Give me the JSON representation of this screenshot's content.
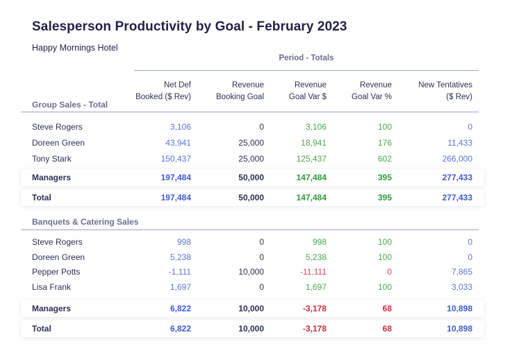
{
  "report": {
    "title": "Salesperson Productivity by Goal - February 2023",
    "subtitle": "Happy Mornings Hotel",
    "period_label": "Period - Totals"
  },
  "columns": [
    {
      "line1": "Net Def",
      "line2": "Booked ($ Rev)"
    },
    {
      "line1": "Revenue",
      "line2": "Booking Goal"
    },
    {
      "line1": "Revenue",
      "line2": "Goal Var $"
    },
    {
      "line1": "Revenue",
      "line2": "Goal Var %"
    },
    {
      "line1": "New Tentatives",
      "line2": "($ Rev)"
    }
  ],
  "sections": [
    {
      "label": "Group Sales - Total",
      "rows": [
        {
          "name": "Steve Rogers",
          "values": [
            "3,106",
            "0",
            "3,106",
            "100",
            "0"
          ]
        },
        {
          "name": "Doreen Green",
          "values": [
            "43,941",
            "25,000",
            "18,941",
            "176",
            "11,433"
          ]
        },
        {
          "name": "Tony Stark",
          "values": [
            "150,437",
            "25,000",
            "125,437",
            "602",
            "266,000"
          ]
        }
      ],
      "managers": {
        "name": "Managers",
        "values": [
          "197,484",
          "50,000",
          "147,484",
          "395",
          "277,433"
        ]
      },
      "total": {
        "name": "Total",
        "values": [
          "197,484",
          "50,000",
          "147,484",
          "395",
          "277,433"
        ]
      }
    },
    {
      "label": "Banquets & Catering Sales",
      "rows": [
        {
          "name": "Steve Rogers",
          "values": [
            "998",
            "0",
            "998",
            "100",
            "0"
          ]
        },
        {
          "name": "Doreen Green",
          "values": [
            "5,238",
            "0",
            "5,238",
            "100",
            "0"
          ]
        },
        {
          "name": "Pepper Potts",
          "values": [
            "-1,111",
            "10,000",
            "-11,111",
            "0",
            "7,865"
          ]
        },
        {
          "name": "Lisa Frank",
          "values": [
            "1,697",
            "0",
            "1,697",
            "100",
            "3,033"
          ]
        }
      ],
      "managers": {
        "name": "Managers",
        "values": [
          "6,822",
          "10,000",
          "-3,178",
          "68",
          "10,898"
        ]
      },
      "total": {
        "name": "Total",
        "values": [
          "6,822",
          "10,000",
          "-3,178",
          "68",
          "10,898"
        ]
      }
    }
  ],
  "colors": {
    "blue": "#5b74d6",
    "green": "#46a84e",
    "red": "#d9474f",
    "text": "#1e2147",
    "rule": "#9aa3d6"
  }
}
